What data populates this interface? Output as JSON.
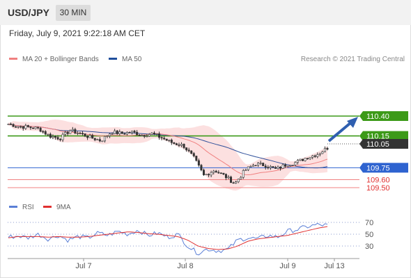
{
  "header": {
    "symbol": "USD/JPY",
    "timeframe": "30 MIN"
  },
  "datetime": "Friday, July 9, 2021 9:22:18 AM CET",
  "legend": {
    "ma20": {
      "label": "MA 20 + Bollinger Bands",
      "color": "#f08080"
    },
    "ma50": {
      "label": "MA 50",
      "color": "#1f4e9c"
    },
    "rsi": {
      "label": "RSI",
      "color": "#5b7fd6"
    },
    "ma9": {
      "label": "9MA",
      "color": "#e03030"
    }
  },
  "copyright": "Research © 2021 Trading Central",
  "chart_data": {
    "type": "candlestick",
    "x_ticks": [
      "Jul 7",
      "Jul 8",
      "Jul 9",
      "Jul 13"
    ],
    "price_ylim": [
      109.3,
      110.65
    ],
    "price_series_anchors": [
      110.3,
      110.27,
      110.26,
      110.24,
      110.15,
      110.12,
      110.22,
      110.18,
      110.13,
      110.09,
      110.2,
      110.18,
      110.2,
      110.16,
      110.18,
      110.12,
      110.06,
      110.03,
      109.88,
      109.65,
      109.72,
      109.65,
      109.55,
      109.72,
      109.8,
      109.78,
      109.73,
      109.79,
      109.82,
      109.88,
      109.92,
      110.0
    ],
    "levels": [
      {
        "value": "110.40",
        "kind": "resistance",
        "color": "#3c9a18",
        "label_color": "#ffffff"
      },
      {
        "value": "110.15",
        "kind": "resistance",
        "color": "#3c9a18",
        "label_color": "#ffffff"
      },
      {
        "value": "110.05",
        "kind": "last-price",
        "color": "#333333",
        "label_color": "#ffffff"
      },
      {
        "value": "109.75",
        "kind": "pivot",
        "color": "#2e63d0",
        "label_color": "#ffffff"
      },
      {
        "value": "109.60",
        "kind": "support",
        "color": "#f08080",
        "label_color": "#e03030"
      },
      {
        "value": "109.50",
        "kind": "support",
        "color": "#f08080",
        "label_color": "#e03030"
      }
    ],
    "forecast": "up toward 110.40",
    "rsi": {
      "ylim": [
        10,
        80
      ],
      "levels": [
        "70",
        "50",
        "30"
      ],
      "anchors": [
        45,
        47,
        44,
        50,
        42,
        48,
        40,
        46,
        44,
        52,
        48,
        55,
        50,
        57,
        48,
        52,
        45,
        50,
        30,
        18,
        25,
        22,
        24,
        40,
        44,
        42,
        48,
        45,
        55,
        58,
        63,
        66,
        65
      ],
      "ma9_anchors": [
        44,
        46,
        46,
        46,
        45,
        46,
        45,
        45,
        46,
        48,
        50,
        52,
        54,
        53,
        51,
        50,
        48,
        46,
        40,
        30,
        26,
        24,
        25,
        30,
        38,
        42,
        44,
        46,
        48,
        52,
        56,
        60,
        63
      ]
    }
  }
}
